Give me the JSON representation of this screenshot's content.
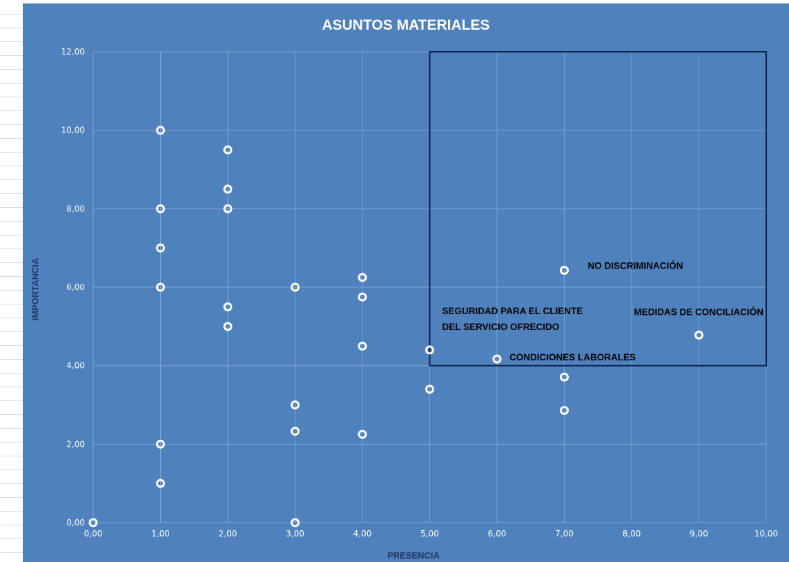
{
  "chart_data": {
    "type": "scatter",
    "title": "ASUNTOS MATERIALES",
    "xlabel": "PRESENCIA",
    "ylabel": "IMPORTANCIA",
    "xlim": [
      0,
      10
    ],
    "ylim": [
      0,
      12
    ],
    "x_ticks": [
      "0,00",
      "1,00",
      "2,00",
      "3,00",
      "4,00",
      "5,00",
      "6,00",
      "7,00",
      "8,00",
      "9,00",
      "10,00"
    ],
    "y_ticks": [
      "0,00",
      "2,00",
      "4,00",
      "6,00",
      "8,00",
      "10,00",
      "12,00"
    ],
    "grid": true,
    "background_color": "#4f81bd",
    "gridline_color": "#7fa3d1",
    "marker_color": "#ffffff",
    "highlight_box_color": "#0b1f4b",
    "highlight_box": {
      "x": [
        5,
        10
      ],
      "y": [
        4,
        12
      ]
    },
    "points": [
      {
        "x": 0,
        "y": 0
      },
      {
        "x": 1,
        "y": 10
      },
      {
        "x": 1,
        "y": 8
      },
      {
        "x": 1,
        "y": 7
      },
      {
        "x": 1,
        "y": 6
      },
      {
        "x": 1,
        "y": 2
      },
      {
        "x": 1,
        "y": 1
      },
      {
        "x": 2,
        "y": 9.5
      },
      {
        "x": 2,
        "y": 8.5
      },
      {
        "x": 2,
        "y": 8
      },
      {
        "x": 2,
        "y": 5.5
      },
      {
        "x": 2,
        "y": 5
      },
      {
        "x": 3,
        "y": 6
      },
      {
        "x": 3,
        "y": 3
      },
      {
        "x": 3,
        "y": 2.33
      },
      {
        "x": 3,
        "y": 0
      },
      {
        "x": 4,
        "y": 6.25
      },
      {
        "x": 4,
        "y": 5.75
      },
      {
        "x": 4,
        "y": 4.5
      },
      {
        "x": 4,
        "y": 2.25
      },
      {
        "x": 5,
        "y": 4.4
      },
      {
        "x": 5,
        "y": 3.4
      },
      {
        "x": 6,
        "y": 4.17
      },
      {
        "x": 7,
        "y": 6.43
      },
      {
        "x": 7,
        "y": 3.71
      },
      {
        "x": 7,
        "y": 2.86
      },
      {
        "x": 9,
        "y": 4.78
      }
    ],
    "annotations": [
      {
        "text": "NO DISCRIMINACIÓN",
        "x": 7,
        "y": 6.43
      },
      {
        "text": "SEGURIDAD PARA EL CLIENTE",
        "x": 5,
        "y": 4.4
      },
      {
        "text": "DEL SERVICIO OFRECIDO",
        "x": 5,
        "y": 4.4
      },
      {
        "text": "CONDICIONES LABORALES",
        "x": 6,
        "y": 4.17
      },
      {
        "text": "MEDIDAS DE CONCILIACIÓN",
        "x": 9,
        "y": 4.78
      }
    ]
  }
}
